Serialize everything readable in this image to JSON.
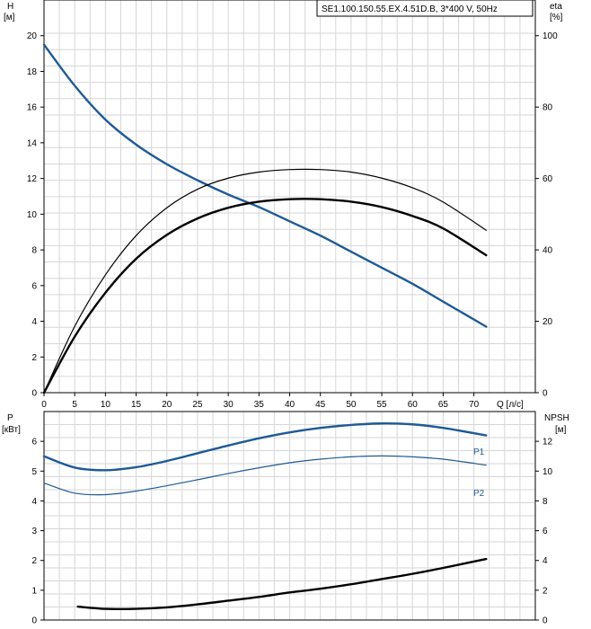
{
  "model_label": "SE1.100.150.55.EX.4.51D.B, 3*400 V, 50Hz",
  "chart_data": [
    {
      "type": "line",
      "panel": "top",
      "left_axis": {
        "name": "H",
        "unit": "[м]",
        "range": [
          0,
          22
        ],
        "ticks": [
          0,
          2,
          4,
          6,
          8,
          10,
          12,
          14,
          16,
          18,
          20
        ]
      },
      "right_axis": {
        "name": "eta",
        "unit": "[%]",
        "range": [
          0,
          110
        ],
        "ticks": [
          0,
          20,
          40,
          60,
          80,
          100
        ]
      },
      "x_axis": {
        "label": "Q [л/с]",
        "range": [
          0,
          80
        ],
        "ticks": [
          0,
          5,
          10,
          15,
          20,
          25,
          30,
          35,
          40,
          45,
          50,
          55,
          60,
          65,
          70
        ]
      },
      "series": [
        {
          "axis": "left",
          "color": "#1f5a96",
          "width": 2.4,
          "x": [
            0,
            5,
            10,
            15,
            20,
            25,
            30,
            35,
            40,
            45,
            50,
            55,
            60,
            65,
            72
          ],
          "y": [
            19.5,
            17.2,
            15.3,
            13.9,
            12.8,
            11.9,
            11.1,
            10.4,
            9.6,
            8.8,
            7.9,
            7.0,
            6.1,
            5.1,
            3.7
          ]
        },
        {
          "axis": "right",
          "color": "#000000",
          "width": 1.2,
          "x": [
            0,
            5,
            10,
            15,
            20,
            25,
            30,
            35,
            40,
            45,
            50,
            55,
            60,
            65,
            72
          ],
          "y": [
            0,
            18.6,
            33,
            44,
            51.8,
            57,
            60.1,
            61.8,
            62.5,
            62.5,
            61.8,
            60.1,
            57.4,
            53.4,
            45.5
          ]
        },
        {
          "axis": "right",
          "color": "#000000",
          "width": 2.4,
          "x": [
            0,
            5,
            10,
            15,
            20,
            25,
            30,
            35,
            40,
            45,
            50,
            55,
            60,
            65,
            72
          ],
          "y": [
            0,
            15.7,
            28,
            37.5,
            44.2,
            48.8,
            51.8,
            53.5,
            54.2,
            54.2,
            53.5,
            52,
            49.5,
            46,
            38.5
          ]
        }
      ]
    },
    {
      "type": "line",
      "panel": "bottom",
      "left_axis": {
        "name": "P",
        "unit": "[кВт]",
        "range": [
          0,
          7
        ],
        "ticks": [
          0,
          1,
          2,
          3,
          4,
          5,
          6
        ]
      },
      "right_axis": {
        "name": "NPSH",
        "unit": "[м]",
        "range": [
          0,
          14
        ],
        "ticks": [
          0,
          2,
          4,
          6,
          8,
          10,
          12
        ]
      },
      "x_axis": {
        "range": [
          0,
          80
        ]
      },
      "series": [
        {
          "name": "P1",
          "axis": "left",
          "color": "#1f5a96",
          "width": 2.4,
          "x": [
            0,
            5,
            10,
            15,
            20,
            25,
            30,
            35,
            40,
            45,
            50,
            55,
            60,
            65,
            72
          ],
          "y": [
            5.5,
            5.12,
            5.03,
            5.13,
            5.34,
            5.6,
            5.86,
            6.1,
            6.3,
            6.45,
            6.55,
            6.6,
            6.57,
            6.45,
            6.2
          ]
        },
        {
          "name": "P2",
          "axis": "left",
          "color": "#1f5a96",
          "width": 1.2,
          "x": [
            0,
            5,
            10,
            15,
            20,
            25,
            30,
            35,
            40,
            45,
            50,
            55,
            60,
            65,
            72
          ],
          "y": [
            4.6,
            4.26,
            4.21,
            4.33,
            4.51,
            4.71,
            4.92,
            5.11,
            5.28,
            5.4,
            5.48,
            5.51,
            5.48,
            5.4,
            5.2
          ]
        },
        {
          "axis": "right",
          "color": "#000000",
          "width": 2.4,
          "x": [
            5.5,
            10,
            15,
            20,
            25,
            30,
            35,
            40,
            45,
            50,
            55,
            60,
            65,
            72
          ],
          "y": [
            0.9,
            0.75,
            0.75,
            0.85,
            1.05,
            1.3,
            1.55,
            1.85,
            2.1,
            2.4,
            2.75,
            3.1,
            3.5,
            4.1
          ]
        }
      ]
    }
  ]
}
